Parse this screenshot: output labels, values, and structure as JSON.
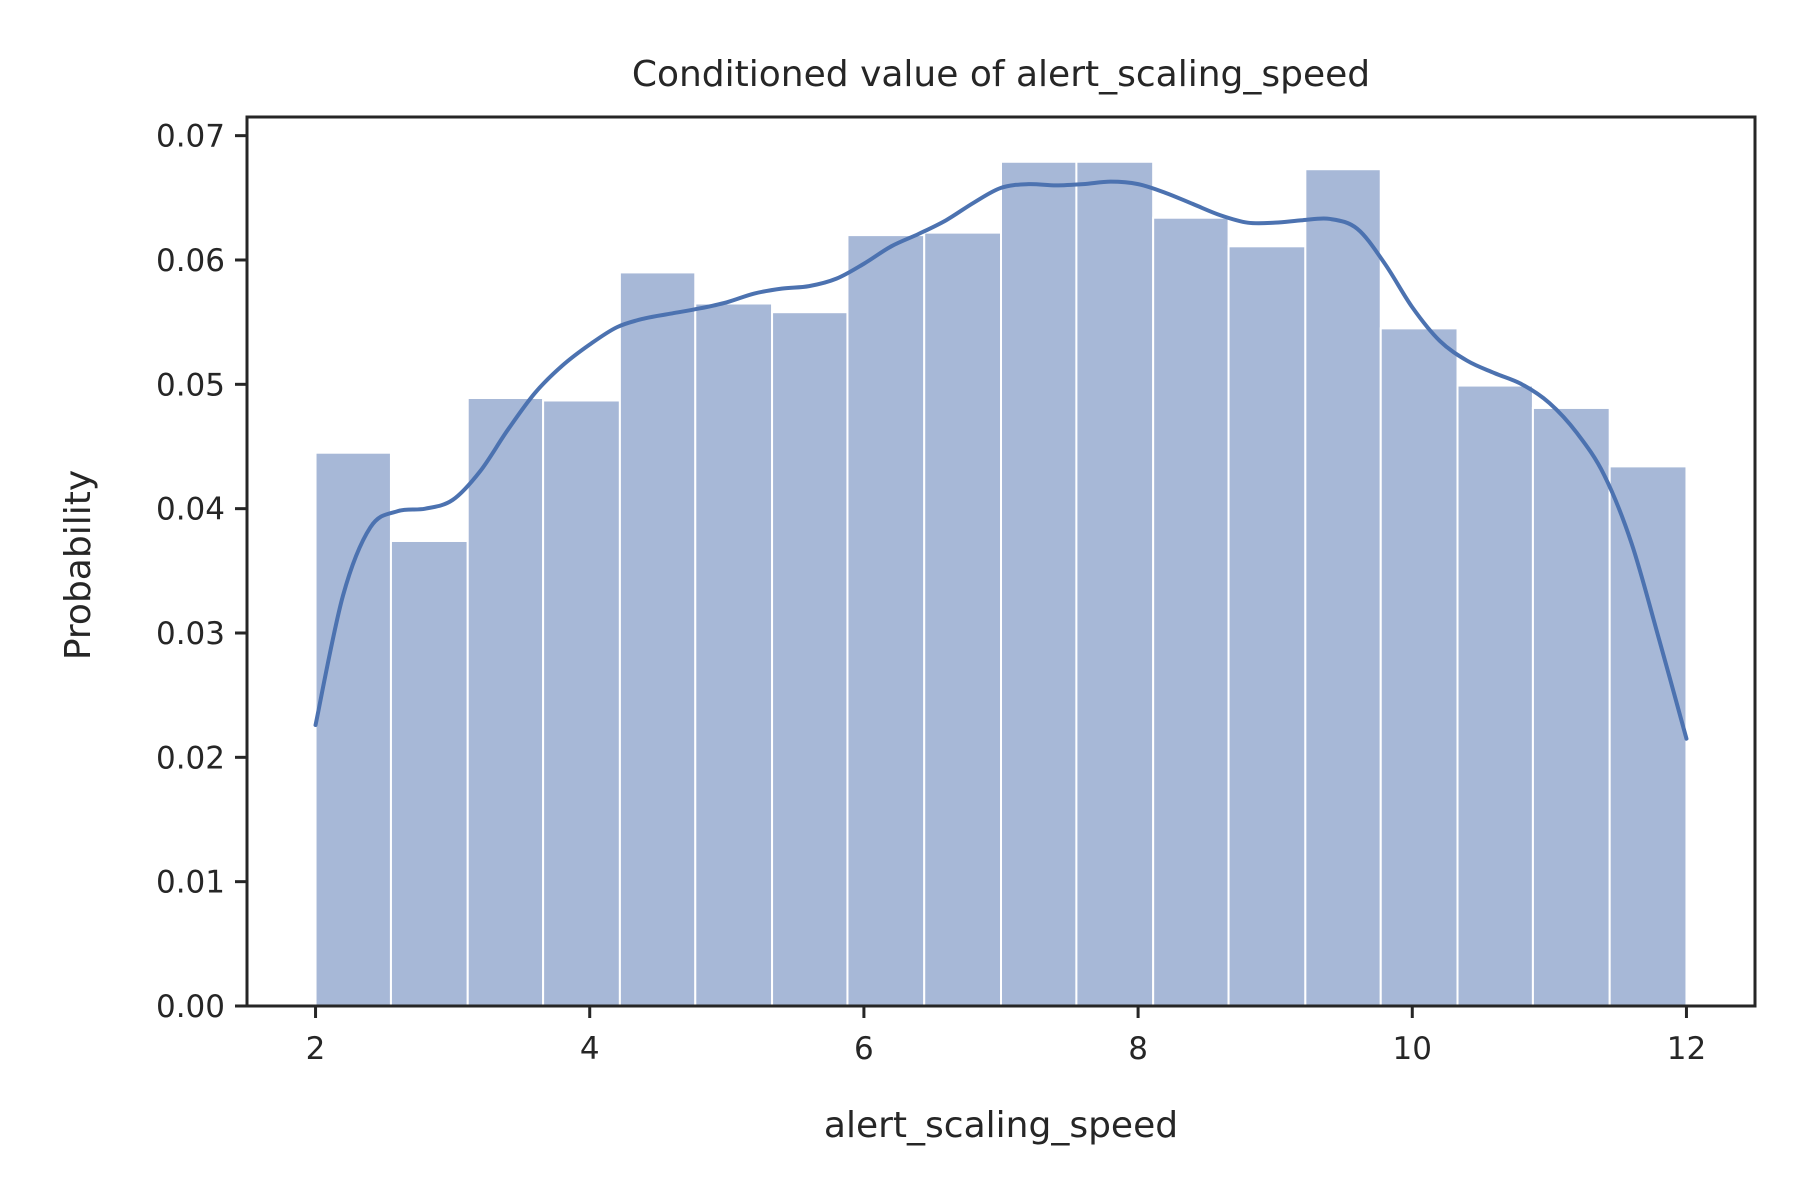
{
  "chart_data": {
    "type": "bar",
    "title": "Conditioned value of alert_scaling_speed",
    "xlabel": "alert_scaling_speed",
    "ylabel": "Probability",
    "xlim": [
      1.5,
      12.5
    ],
    "ylim": [
      0,
      0.0715
    ],
    "grid": false,
    "legend": "none",
    "bar_color": "#a7b8d7",
    "line_color": "#4c72b0",
    "x_ticks": [
      {
        "value": 2,
        "label": "2"
      },
      {
        "value": 4,
        "label": "4"
      },
      {
        "value": 6,
        "label": "6"
      },
      {
        "value": 8,
        "label": "8"
      },
      {
        "value": 10,
        "label": "10"
      },
      {
        "value": 12,
        "label": "12"
      }
    ],
    "y_ticks": [
      {
        "value": 0.0,
        "label": "0.00"
      },
      {
        "value": 0.01,
        "label": "0.01"
      },
      {
        "value": 0.02,
        "label": "0.02"
      },
      {
        "value": 0.03,
        "label": "0.03"
      },
      {
        "value": 0.04,
        "label": "0.04"
      },
      {
        "value": 0.05,
        "label": "0.05"
      },
      {
        "value": 0.06,
        "label": "0.06"
      },
      {
        "value": 0.07,
        "label": "0.07"
      }
    ],
    "bins": [
      {
        "x0": 2.0,
        "x1": 2.55,
        "value": 0.0445
      },
      {
        "x0": 2.55,
        "x1": 3.11,
        "value": 0.0374
      },
      {
        "x0": 3.11,
        "x1": 3.66,
        "value": 0.0489
      },
      {
        "x0": 3.66,
        "x1": 4.22,
        "value": 0.0487
      },
      {
        "x0": 4.22,
        "x1": 4.77,
        "value": 0.059
      },
      {
        "x0": 4.77,
        "x1": 5.33,
        "value": 0.0565
      },
      {
        "x0": 5.33,
        "x1": 5.88,
        "value": 0.0558
      },
      {
        "x0": 5.88,
        "x1": 6.44,
        "value": 0.062
      },
      {
        "x0": 6.44,
        "x1": 7.0,
        "value": 0.0622
      },
      {
        "x0": 7.0,
        "x1": 7.55,
        "value": 0.0679
      },
      {
        "x0": 7.55,
        "x1": 8.11,
        "value": 0.0679
      },
      {
        "x0": 8.11,
        "x1": 8.66,
        "value": 0.0634
      },
      {
        "x0": 8.66,
        "x1": 9.22,
        "value": 0.0611
      },
      {
        "x0": 9.22,
        "x1": 9.77,
        "value": 0.0673
      },
      {
        "x0": 9.77,
        "x1": 10.33,
        "value": 0.0545
      },
      {
        "x0": 10.33,
        "x1": 10.88,
        "value": 0.0499
      },
      {
        "x0": 10.88,
        "x1": 11.44,
        "value": 0.0481
      },
      {
        "x0": 11.44,
        "x1": 12.0,
        "value": 0.0434
      }
    ],
    "kde": {
      "x": [
        2.0,
        2.2,
        2.4,
        2.6,
        2.8,
        3.0,
        3.2,
        3.4,
        3.6,
        3.8,
        4.0,
        4.2,
        4.4,
        4.6,
        4.8,
        5.0,
        5.2,
        5.4,
        5.6,
        5.8,
        6.0,
        6.2,
        6.4,
        6.6,
        6.8,
        7.0,
        7.2,
        7.4,
        7.6,
        7.8,
        8.0,
        8.2,
        8.4,
        8.6,
        8.8,
        9.0,
        9.2,
        9.4,
        9.6,
        9.8,
        10.0,
        10.2,
        10.4,
        10.6,
        10.8,
        11.0,
        11.2,
        11.4,
        11.6,
        11.8,
        12.0
      ],
      "y": [
        0.0226,
        0.033,
        0.0385,
        0.0398,
        0.04,
        0.0407,
        0.043,
        0.0463,
        0.0493,
        0.0515,
        0.0532,
        0.0546,
        0.0553,
        0.0557,
        0.0561,
        0.0566,
        0.0573,
        0.0577,
        0.0579,
        0.0585,
        0.0597,
        0.0611,
        0.0621,
        0.0632,
        0.0646,
        0.0658,
        0.0661,
        0.066,
        0.0661,
        0.0663,
        0.0661,
        0.0654,
        0.0645,
        0.0636,
        0.063,
        0.063,
        0.0632,
        0.0633,
        0.0625,
        0.0597,
        0.0562,
        0.0535,
        0.0519,
        0.0509,
        0.05,
        0.0485,
        0.0461,
        0.0427,
        0.0372,
        0.0295,
        0.0215
      ]
    }
  }
}
